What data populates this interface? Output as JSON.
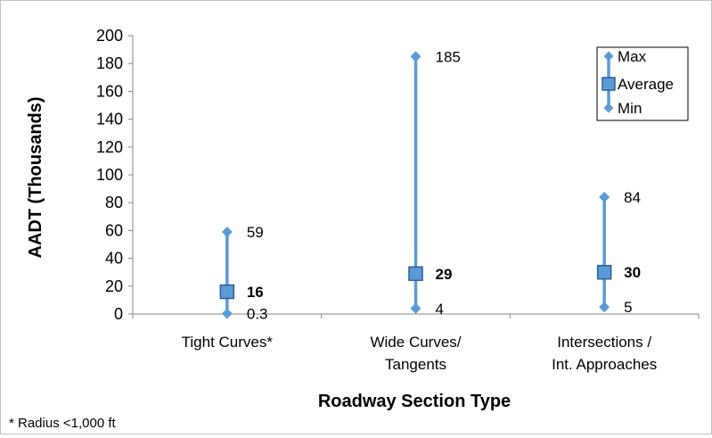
{
  "chart_data": {
    "type": "range",
    "ylabel": "AADT (Thousands)",
    "xlabel": "Roadway Section Type",
    "footnote": "* Radius <1,000 ft",
    "ylim": [
      0,
      200
    ],
    "yticks": [
      "0",
      "20",
      "40",
      "60",
      "80",
      "100",
      "120",
      "140",
      "160",
      "180",
      "200"
    ],
    "grid": false,
    "legend_position": "top-right",
    "categories": [
      {
        "lines": [
          "Tight Curves*"
        ]
      },
      {
        "lines": [
          "Wide Curves/",
          "Tangents"
        ]
      },
      {
        "lines": [
          "Intersections /",
          "Int. Approaches"
        ]
      }
    ],
    "series": [
      {
        "name": "Max",
        "values": [
          59,
          185,
          84
        ],
        "labels": [
          "59",
          "185",
          "84"
        ]
      },
      {
        "name": "Average",
        "values": [
          16,
          29,
          30
        ],
        "labels": [
          "16",
          "29",
          "30"
        ]
      },
      {
        "name": "Min",
        "values": [
          0.3,
          4,
          5
        ],
        "labels": [
          "0.3",
          "4",
          "5"
        ]
      }
    ],
    "colors": {
      "line": "#5b9bd5",
      "avg_fill": "#5b9bd5",
      "avg_stroke": "#2e5d8f",
      "axis": "#868686"
    }
  }
}
